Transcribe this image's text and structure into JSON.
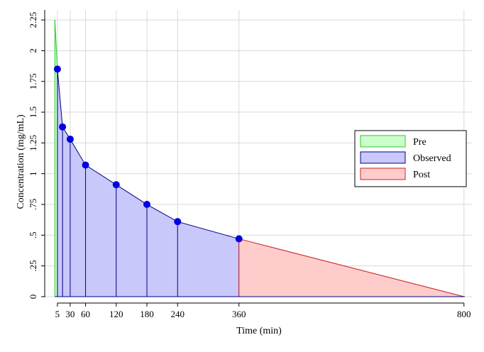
{
  "chart_data": {
    "type": "area",
    "xlabel": "Time (min)",
    "ylabel": "Concentration (mg/mL)",
    "xlim": [
      -20,
      800
    ],
    "ylim": [
      0,
      2.25
    ],
    "x_ticks": [
      5,
      30,
      60,
      120,
      180,
      240,
      360,
      800
    ],
    "x_tick_labels": [
      "5",
      "30",
      "60",
      "120",
      "180",
      "240",
      "360",
      "800"
    ],
    "y_ticks": [
      0,
      0.25,
      0.5,
      0.75,
      1,
      1.25,
      1.5,
      1.75,
      2,
      2.25
    ],
    "y_tick_labels": [
      "0",
      ".25",
      ".5",
      ".75",
      "1",
      "1.25",
      "1.5",
      "1.75",
      "2",
      "2.25"
    ],
    "grid": true,
    "legend_position": "right",
    "series": [
      {
        "name": "Pre",
        "fill": "#ccffcc",
        "stroke": "#22cc22",
        "x": [
          0,
          5
        ],
        "y": [
          2.25,
          1.85
        ]
      },
      {
        "name": "Observed",
        "fill": "#c8c8fa",
        "stroke": "#000080",
        "marker": "#0000e0",
        "x": [
          5,
          15,
          30,
          60,
          120,
          180,
          240,
          360
        ],
        "y": [
          1.85,
          1.38,
          1.28,
          1.07,
          0.91,
          0.75,
          0.61,
          0.47
        ]
      },
      {
        "name": "Post",
        "fill": "#ffcccc",
        "stroke": "#cc2222",
        "x": [
          360,
          800
        ],
        "y": [
          0.47,
          0
        ]
      }
    ]
  }
}
